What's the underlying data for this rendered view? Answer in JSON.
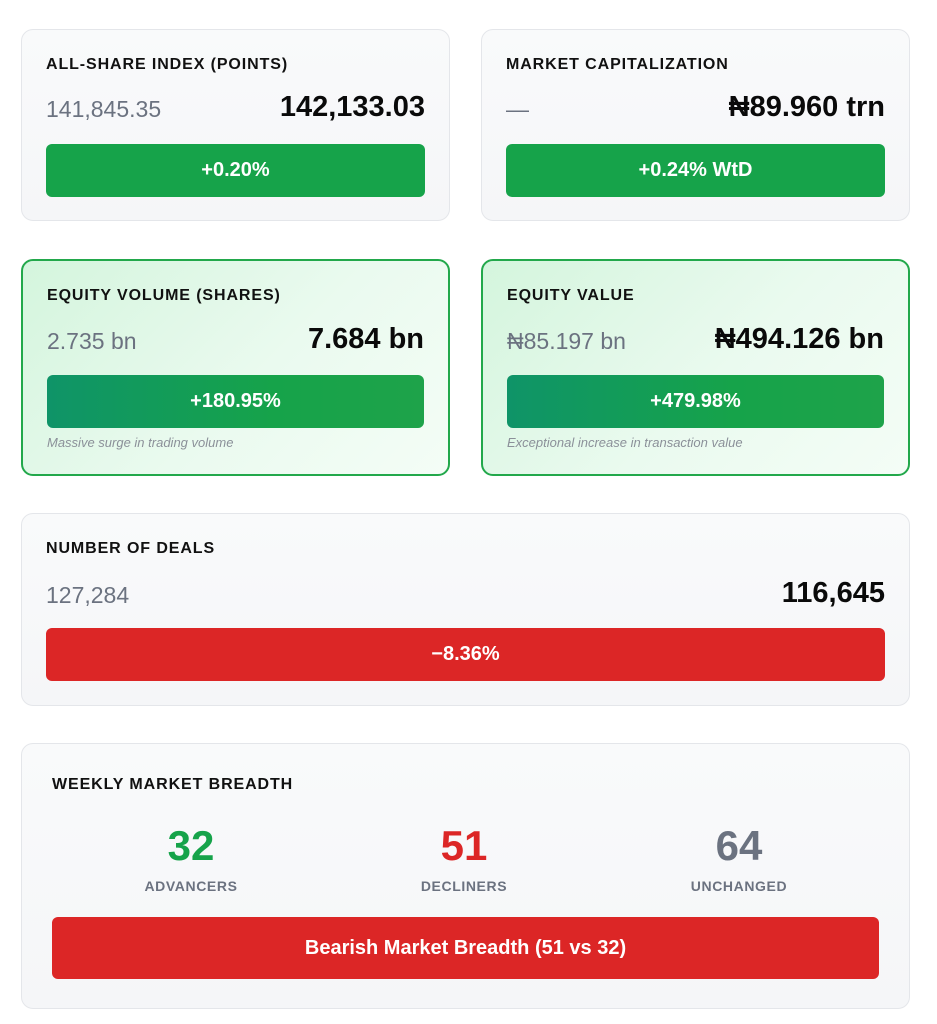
{
  "colors": {
    "positive": "#16a34a",
    "negative": "#dc2626",
    "neutral": "#6b7280",
    "highlight_border": "#22a84b"
  },
  "asi": {
    "title": "ALL-SHARE INDEX (POINTS)",
    "previous": "141,845.35",
    "current": "142,133.03",
    "change": "+0.20%"
  },
  "market_cap": {
    "title": "MARKET CAPITALIZATION",
    "previous": "—",
    "current": "₦89.960 trn",
    "change": "+0.24% WtD"
  },
  "equity_volume": {
    "title": "EQUITY VOLUME (SHARES)",
    "previous": "2.735 bn",
    "current": "7.684 bn",
    "change": "+180.95%",
    "note": "Massive surge in trading volume"
  },
  "equity_value": {
    "title": "EQUITY VALUE",
    "previous": "₦85.197 bn",
    "current": "₦494.126 bn",
    "change": "+479.98%",
    "note": "Exceptional increase in transaction value"
  },
  "deals": {
    "title": "NUMBER OF DEALS",
    "previous": "127,284",
    "current": "116,645",
    "change": "−8.36%"
  },
  "breadth": {
    "title": "WEEKLY MARKET BREADTH",
    "advancers": {
      "value": "32",
      "label": "ADVANCERS"
    },
    "decliners": {
      "value": "51",
      "label": "DECLINERS"
    },
    "unchanged": {
      "value": "64",
      "label": "UNCHANGED"
    },
    "summary": "Bearish Market Breadth (51 vs 32)"
  }
}
